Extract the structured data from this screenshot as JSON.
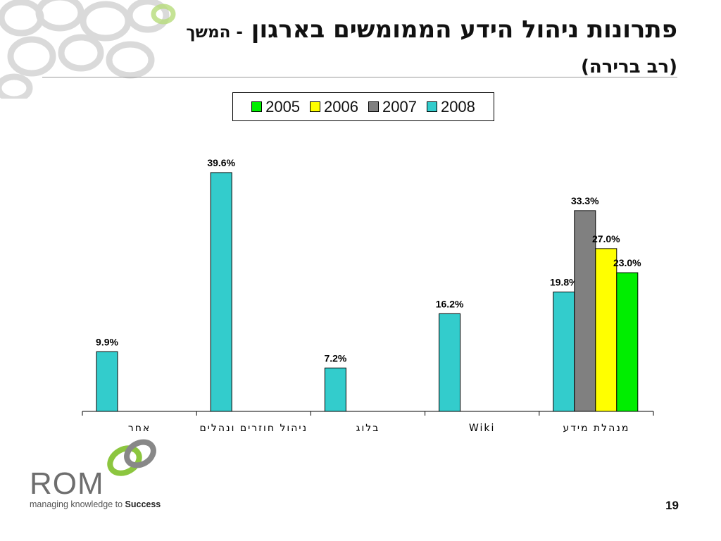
{
  "slide": {
    "title": "פתרונות ניהול הידע הממומשים בארגון",
    "title_continued": "- המשך",
    "subtitle": "(רב ברירה)",
    "page_number": "19"
  },
  "logo": {
    "name": "ROM",
    "tagline_prefix": "managing knowledge to",
    "tagline_bold": "Success"
  },
  "colors": {
    "2005": "#00ee00",
    "2006": "#ffff00",
    "2007": "#808080",
    "2008": "#33cccc",
    "logo_green": "#8cc63f",
    "logo_gray": "#888888",
    "deco_gray": "#c8c8c8"
  },
  "chart_data": {
    "type": "bar",
    "series": [
      {
        "name": "2005",
        "values": [
          null,
          null,
          null,
          null,
          23.0
        ]
      },
      {
        "name": "2006",
        "values": [
          null,
          null,
          null,
          null,
          27.0
        ]
      },
      {
        "name": "2007",
        "values": [
          null,
          null,
          null,
          null,
          33.3
        ]
      },
      {
        "name": "2008",
        "values": [
          9.9,
          39.6,
          7.2,
          16.2,
          19.8
        ]
      }
    ],
    "categories": [
      "אחר",
      "ניהול חוזרים ונהלים",
      "בלוג",
      "Wiki",
      "מנהלת מידע"
    ],
    "data_labels": {
      "2005": [
        null,
        null,
        null,
        null,
        "23.0%"
      ],
      "2006": [
        null,
        null,
        null,
        null,
        "27.0%"
      ],
      "2007": [
        null,
        null,
        null,
        null,
        "33.3%"
      ],
      "2008": [
        "9.9%",
        "39.6%",
        "7.2%",
        "16.2%",
        "19.8%"
      ]
    },
    "legend_order": [
      "2005",
      "2006",
      "2007",
      "2008"
    ],
    "legend_position": "top",
    "ylim": [
      0,
      45
    ],
    "y_axis_visible": false,
    "grid": false,
    "title": "",
    "xlabel": "",
    "ylabel": ""
  }
}
